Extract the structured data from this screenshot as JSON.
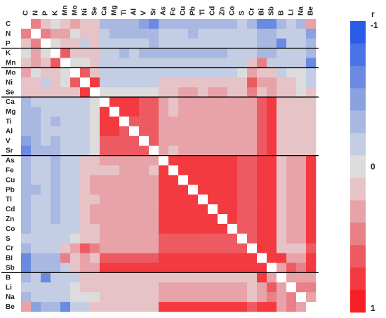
{
  "chart_data": {
    "type": "heatmap",
    "title": "",
    "variables": [
      "C",
      "N",
      "P",
      "K",
      "Mn",
      "Mo",
      "Ni",
      "Se",
      "Ca",
      "Mg",
      "Ti",
      "Al",
      "V",
      "Sr",
      "As",
      "Fe",
      "Cu",
      "Pb",
      "Tl",
      "Cd",
      "Zn",
      "Co",
      "S",
      "Cr",
      "Bi",
      "Sb",
      "B",
      "Li",
      "Na",
      "Be"
    ],
    "group_separators_after": [
      "P",
      "Mn",
      "Se",
      "Sr",
      "Sb"
    ],
    "diagonal": "blank",
    "colorscale": {
      "label": "r",
      "range": [
        -1,
        1
      ],
      "tick_labels": [
        "-1",
        "0",
        "1"
      ],
      "levels": 13,
      "colors": [
        "#2b5ce8",
        "#4a73e6",
        "#6a8ae2",
        "#8aa2e0",
        "#a8b8e0",
        "#c3cde4",
        "#dcdcdc",
        "#e6c3c6",
        "#e8a3a8",
        "#ea8087",
        "#ee5a61",
        "#f23a40",
        "#f51f25"
      ]
    },
    "matrix_lower_triangle": [
      [],
      [
        0.55
      ],
      [
        0.1,
        0.5
      ],
      [
        0.05,
        0.3,
        0.0
      ],
      [
        0.1,
        0.3,
        0.1,
        0.65
      ],
      [
        0.3,
        0.0,
        0.1,
        0.1,
        0.0
      ],
      [
        0.2,
        0.1,
        -0.1,
        0.1,
        0.0,
        0.6
      ],
      [
        0.1,
        0.1,
        0.1,
        0.1,
        0.1,
        0.2,
        0.8
      ],
      [
        -0.4,
        -0.2,
        -0.1,
        -0.1,
        -0.1,
        -0.2,
        -0.1,
        0.0
      ],
      [
        -0.4,
        -0.3,
        -0.1,
        -0.2,
        -0.1,
        -0.2,
        -0.1,
        0.0,
        0.8
      ],
      [
        -0.4,
        -0.3,
        -0.1,
        -0.3,
        -0.2,
        -0.1,
        -0.1,
        0.0,
        0.8,
        0.8
      ],
      [
        -0.4,
        -0.3,
        -0.2,
        -0.2,
        -0.1,
        -0.2,
        -0.1,
        0.0,
        0.8,
        0.8,
        0.7
      ],
      [
        -0.5,
        -0.3,
        -0.2,
        -0.3,
        -0.2,
        -0.2,
        -0.1,
        0.0,
        0.7,
        0.7,
        0.7,
        0.7
      ],
      [
        -0.6,
        -0.4,
        -0.3,
        -0.3,
        -0.2,
        -0.2,
        -0.1,
        0.0,
        0.7,
        0.6,
        0.6,
        0.6,
        0.6
      ],
      [
        -0.3,
        -0.2,
        -0.2,
        -0.3,
        -0.1,
        -0.1,
        0.1,
        0.2,
        0.3,
        0.3,
        0.3,
        0.3,
        0.4,
        0.3
      ],
      [
        -0.3,
        -0.2,
        -0.2,
        -0.3,
        -0.1,
        -0.1,
        0.1,
        0.2,
        0.2,
        0.2,
        0.3,
        0.3,
        0.4,
        0.2,
        0.9
      ],
      [
        -0.3,
        -0.2,
        -0.2,
        -0.3,
        -0.1,
        -0.1,
        0.1,
        0.3,
        0.3,
        0.3,
        0.3,
        0.3,
        0.4,
        0.3,
        0.9,
        0.9
      ],
      [
        -0.4,
        -0.3,
        -0.2,
        -0.3,
        -0.1,
        -0.1,
        0.1,
        0.3,
        0.3,
        0.3,
        0.3,
        0.3,
        0.4,
        0.3,
        0.9,
        0.9,
        0.9
      ],
      [
        -0.3,
        -0.2,
        -0.2,
        -0.3,
        -0.1,
        -0.1,
        0.1,
        0.2,
        0.3,
        0.3,
        0.3,
        0.3,
        0.4,
        0.3,
        0.9,
        0.9,
        0.9,
        0.9
      ],
      [
        -0.3,
        -0.2,
        -0.2,
        -0.3,
        -0.1,
        -0.1,
        0.1,
        0.3,
        0.3,
        0.3,
        0.3,
        0.3,
        0.4,
        0.3,
        0.9,
        0.9,
        0.9,
        0.9,
        0.9
      ],
      [
        -0.3,
        -0.2,
        -0.2,
        -0.3,
        -0.1,
        -0.1,
        0.1,
        0.3,
        0.3,
        0.3,
        0.3,
        0.3,
        0.4,
        0.3,
        0.9,
        0.9,
        0.9,
        0.9,
        0.9,
        0.9
      ],
      [
        -0.3,
        -0.2,
        -0.2,
        -0.2,
        -0.1,
        -0.1,
        0.1,
        0.2,
        0.3,
        0.3,
        0.3,
        0.3,
        0.3,
        0.3,
        0.8,
        0.8,
        0.8,
        0.8,
        0.8,
        0.8,
        0.8
      ],
      [
        -0.2,
        -0.2,
        -0.1,
        -0.2,
        -0.1,
        0.0,
        0.1,
        0.2,
        0.3,
        0.3,
        0.3,
        0.3,
        0.3,
        0.3,
        0.7,
        0.7,
        0.7,
        0.7,
        0.7,
        0.7,
        0.7,
        0.7
      ],
      [
        -0.3,
        -0.2,
        -0.1,
        -0.2,
        0.1,
        0.3,
        0.6,
        0.5,
        0.3,
        0.3,
        0.3,
        0.3,
        0.3,
        0.3,
        0.6,
        0.6,
        0.6,
        0.6,
        0.6,
        0.6,
        0.6,
        0.6,
        0.6
      ],
      [
        -0.6,
        -0.4,
        -0.3,
        -0.4,
        0.5,
        0.1,
        0.3,
        0.2,
        0.7,
        0.7,
        0.7,
        0.7,
        0.7,
        0.7,
        0.8,
        0.8,
        0.8,
        0.8,
        0.8,
        0.8,
        0.8,
        0.8,
        0.8,
        0.8
      ],
      [
        -0.6,
        -0.4,
        -0.3,
        -0.4,
        -0.1,
        0.2,
        0.4,
        0.3,
        0.8,
        0.8,
        0.8,
        0.8,
        0.8,
        0.8,
        0.9,
        0.9,
        0.9,
        0.9,
        0.9,
        0.9,
        0.9,
        0.9,
        0.8,
        0.8,
        0.9
      ],
      [
        -0.3,
        -0.2,
        -0.6,
        -0.1,
        -0.1,
        -0.1,
        0.1,
        0.1,
        0.1,
        0.2,
        0.2,
        0.2,
        0.2,
        0.2,
        0.2,
        0.2,
        0.2,
        0.2,
        0.2,
        0.2,
        0.2,
        0.2,
        0.2,
        0.2,
        0.8,
        0.3
      ],
      [
        -0.2,
        -0.2,
        -0.1,
        -0.2,
        -0.1,
        0.0,
        0.1,
        0.1,
        0.1,
        0.1,
        0.1,
        0.1,
        0.2,
        0.1,
        0.3,
        0.3,
        0.3,
        0.3,
        0.3,
        0.3,
        0.3,
        0.3,
        0.3,
        0.2,
        0.3,
        0.7,
        0.3
      ],
      [
        -0.3,
        -0.2,
        -0.1,
        -0.2,
        -0.2,
        0.0,
        0.0,
        0.0,
        0.2,
        0.2,
        0.2,
        0.2,
        0.2,
        0.2,
        0.3,
        0.3,
        0.3,
        0.3,
        0.3,
        0.3,
        0.3,
        0.3,
        0.3,
        0.2,
        0.3,
        0.5,
        0.3,
        0.5
      ],
      [
        0.3,
        -0.5,
        -0.3,
        -0.3,
        -0.7,
        -0.2,
        -0.1,
        0.1,
        0.2,
        0.2,
        0.2,
        0.2,
        0.2,
        0.2,
        0.9,
        0.9,
        0.9,
        0.9,
        0.9,
        0.9,
        0.9,
        0.9,
        0.8,
        0.6,
        0.8,
        0.9,
        0.4,
        0.5,
        0.4
      ]
    ]
  }
}
